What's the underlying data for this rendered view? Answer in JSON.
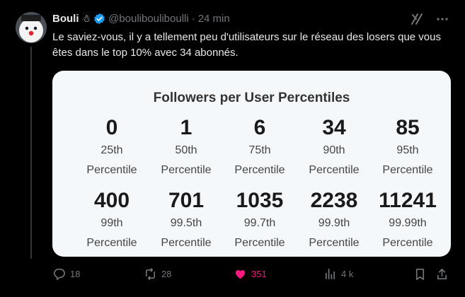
{
  "tweet": {
    "display_name": "Bouli",
    "emoji": "☃",
    "handle": "@boulibouliboulli",
    "separator": "·",
    "time": "24 min",
    "text": "Le saviez-vous, il y a tellement peu d'utilisateurs sur le réseau des losers que vous êtes dans le top 10% avec 34 abonnés."
  },
  "card": {
    "title": "Followers per User Percentiles",
    "cells": [
      {
        "value": "0",
        "p": "25th",
        "word": "Percentile"
      },
      {
        "value": "1",
        "p": "50th",
        "word": "Percentile"
      },
      {
        "value": "6",
        "p": "75th",
        "word": "Percentile"
      },
      {
        "value": "34",
        "p": "90th",
        "word": "Percentile"
      },
      {
        "value": "85",
        "p": "95th",
        "word": "Percentile"
      },
      {
        "value": "400",
        "p": "99th",
        "word": "Percentile"
      },
      {
        "value": "701",
        "p": "99.5th",
        "word": "Percentile"
      },
      {
        "value": "1035",
        "p": "99.7th",
        "word": "Percentile"
      },
      {
        "value": "2238",
        "p": "99.9th",
        "word": "Percentile"
      },
      {
        "value": "11241",
        "p": "99.99th",
        "word": "Percentile"
      }
    ]
  },
  "actions": {
    "replies": "18",
    "reposts": "28",
    "likes": "351",
    "views": "4 k"
  },
  "colors": {
    "background": "#000000",
    "like": "#f91880",
    "verified": "#1d9bf0",
    "muted": "#71767b"
  }
}
